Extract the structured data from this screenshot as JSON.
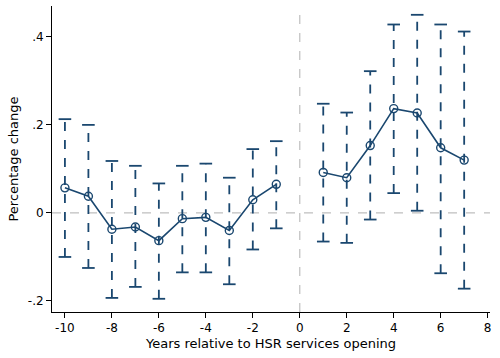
{
  "chart_data": {
    "type": "line",
    "x_label": "Years relative to HSR services opening",
    "y_label": "Percentage change",
    "x": [
      -10,
      -9,
      -8,
      -7,
      -6,
      -5,
      -4,
      -3,
      -2,
      -1,
      0,
      1,
      2,
      3,
      4,
      5,
      6,
      7
    ],
    "values": [
      0.057,
      0.038,
      -0.037,
      -0.032,
      -0.063,
      -0.013,
      -0.01,
      -0.04,
      0.03,
      0.065,
      null,
      0.092,
      0.08,
      0.153,
      0.237,
      0.227,
      0.148,
      0.12
    ],
    "ci_low": [
      -0.1,
      -0.125,
      -0.193,
      -0.168,
      -0.195,
      -0.135,
      -0.135,
      -0.162,
      -0.083,
      -0.035,
      null,
      -0.065,
      -0.068,
      -0.015,
      0.045,
      0.005,
      -0.137,
      -0.172
    ],
    "ci_high": [
      0.213,
      0.2,
      0.118,
      0.107,
      0.067,
      0.107,
      0.112,
      0.08,
      0.145,
      0.163,
      null,
      0.248,
      0.228,
      0.322,
      0.428,
      0.45,
      0.428,
      0.412
    ],
    "color": "#1a476f",
    "marker": "circle-open",
    "line_style": "solid",
    "vline": 0,
    "hline": 0,
    "xlim": [
      -10.55,
      8.1
    ],
    "xticks": [
      -10,
      -8,
      -6,
      -4,
      -2,
      0,
      2,
      4,
      6,
      8
    ],
    "ylim": [
      -0.225,
      0.47
    ],
    "yticks": [
      {
        "value": -0.2,
        "label": "-.2"
      },
      0,
      {
        "value": 0.2,
        "label": ".2"
      },
      {
        "value": 0.4,
        "label": ".4"
      }
    ],
    "grid": false
  }
}
